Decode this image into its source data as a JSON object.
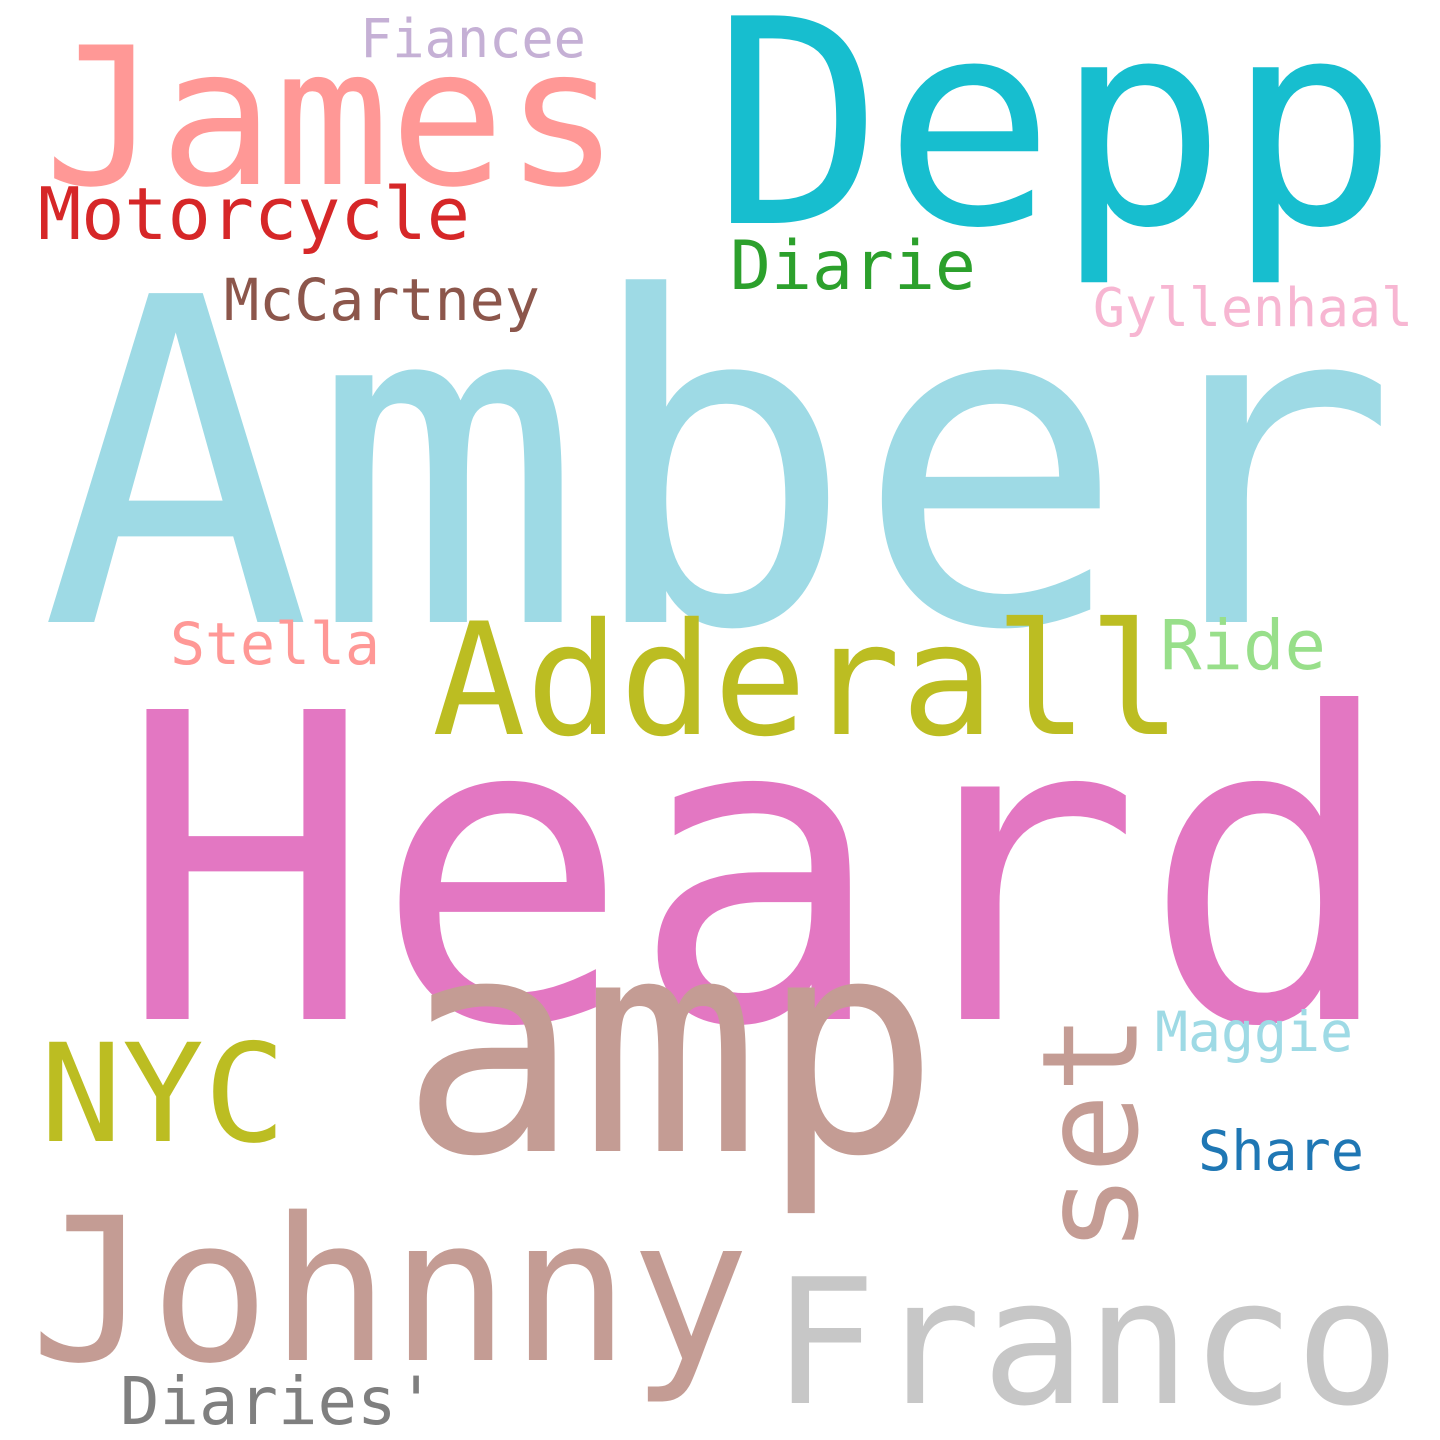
{
  "words": [
    {
      "text": "Depp",
      "color": "#17becf"
    },
    {
      "text": "James",
      "color": "#ff9896"
    },
    {
      "text": "Fiancee",
      "color": "#c5b0d5"
    },
    {
      "text": "Motorcycle",
      "color": "#d62728"
    },
    {
      "text": "Diarie",
      "color": "#2ca02c"
    },
    {
      "text": "McCartney",
      "color": "#8c564b"
    },
    {
      "text": "Gyllenhaal",
      "color": "#f7b6d2"
    },
    {
      "text": "Amber",
      "color": "#9edae5"
    },
    {
      "text": "Adderall",
      "color": "#bcbd22"
    },
    {
      "text": "Stella",
      "color": "#ff9896"
    },
    {
      "text": "Ride",
      "color": "#98df8a"
    },
    {
      "text": "Heard",
      "color": "#e377c2"
    },
    {
      "text": "amp",
      "color": "#c49c94"
    },
    {
      "text": "NYC",
      "color": "#bcbd22"
    },
    {
      "text": "set",
      "color": "#c49c94"
    },
    {
      "text": "Maggie",
      "color": "#9edae5"
    },
    {
      "text": "Share",
      "color": "#1f77b4"
    },
    {
      "text": "Johnny",
      "color": "#c49c94"
    },
    {
      "text": "Franco",
      "color": "#c7c7c7"
    },
    {
      "text": "Diaries'",
      "color": "#7f7f7f"
    }
  ]
}
